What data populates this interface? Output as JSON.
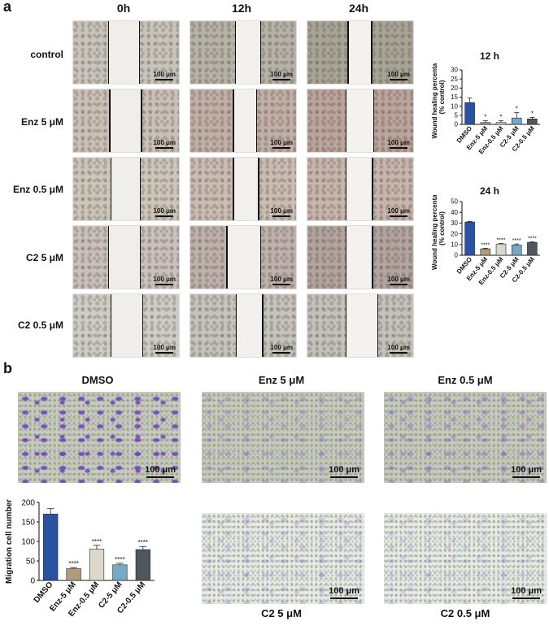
{
  "panel_a": {
    "letter": "a",
    "columns": [
      "0h",
      "12h",
      "24h"
    ],
    "rows": [
      "control",
      "Enz 5 μM",
      "Enz 0.5 μM",
      "C2 5 μM",
      "C2 0.5 μM"
    ],
    "scale_bar": "100 μm"
  },
  "panel_b": {
    "letter": "b",
    "images": [
      "DMSO",
      "Enz 5 μM",
      "Enz 0.5 μM",
      "C2 5 μM",
      "C2 0.5 μM"
    ],
    "scale_bar": "100 μm"
  },
  "chart_data": [
    {
      "type": "bar",
      "title": "12 h",
      "ylabel": "Wound healing percentage (% control)",
      "ylabel_line1": "Wound healing percentage",
      "ylabel_line2": "(% control)",
      "categories": [
        "DMSO",
        "Enz-5 μM",
        "Enz-0.5 μM",
        "C2-5 μM",
        "C2-0.5 μM"
      ],
      "values": [
        12,
        1,
        1,
        3.5,
        3
      ],
      "errors": [
        2.5,
        1,
        1,
        3,
        0.8
      ],
      "significance": [
        "",
        "*",
        "*",
        "*",
        "*"
      ],
      "ylim": [
        0,
        30
      ],
      "yticks": [
        0,
        5,
        10,
        15,
        20,
        25,
        30
      ],
      "colors": [
        "#2a52a3",
        "#b29b7c",
        "#ddd8cc",
        "#74a9c7",
        "#50565d"
      ]
    },
    {
      "type": "bar",
      "title": "24 h",
      "ylabel": "Wound healing percentage (% control)",
      "ylabel_line1": "Wound healing percentage",
      "ylabel_line2": "(% control)",
      "categories": [
        "DMSO",
        "Enz-5 μM",
        "Enz-0.5 μM",
        "C2-5 μM",
        "C2-0.5 μM"
      ],
      "values": [
        31,
        6,
        10.5,
        9.5,
        12
      ],
      "errors": [
        0.5,
        0.5,
        0.5,
        1,
        0.5
      ],
      "significance": [
        "",
        "****",
        "****",
        "****",
        "****"
      ],
      "ylim": [
        0,
        50
      ],
      "yticks": [
        0,
        10,
        20,
        30,
        40,
        50
      ],
      "colors": [
        "#2a52a3",
        "#b29b7c",
        "#ddd8cc",
        "#74a9c7",
        "#50565d"
      ]
    },
    {
      "type": "bar",
      "title": "",
      "ylabel": "Migration cell number",
      "categories": [
        "DMSO",
        "Enz-5 μM",
        "Enz-0.5 μM",
        "C2-5 μM",
        "C2-0.5 μM"
      ],
      "values": [
        170,
        30,
        80,
        40,
        79
      ],
      "errors": [
        14,
        3,
        10,
        4,
        8
      ],
      "significance": [
        "",
        "****",
        "****",
        "****",
        "****"
      ],
      "ylim": [
        0,
        200
      ],
      "yticks": [
        0,
        50,
        100,
        150,
        200
      ],
      "colors": [
        "#2a52a3",
        "#b29b7c",
        "#ddd8cc",
        "#74a9c7",
        "#50565d"
      ]
    }
  ]
}
